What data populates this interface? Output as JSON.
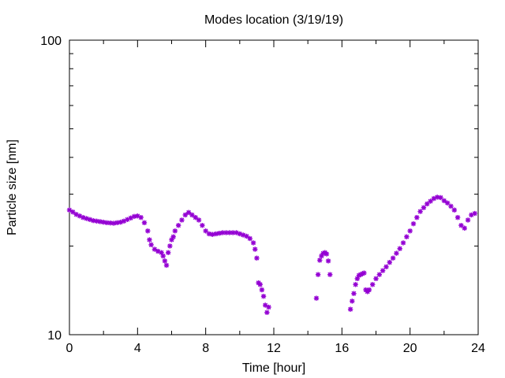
{
  "chart_data": {
    "type": "scatter",
    "title": "Modes location (3/19/19)",
    "xlabel": "Time [hour]",
    "ylabel": "Particle size [nm]",
    "xlim": [
      0,
      24
    ],
    "ylim": [
      10,
      100
    ],
    "yscale": "log",
    "x_ticks": [
      0,
      4,
      8,
      12,
      16,
      20,
      24
    ],
    "x_tick_labels": [
      "0",
      "4",
      "8",
      "12",
      "16",
      "20",
      "24"
    ],
    "y_ticks": [
      10,
      100
    ],
    "y_tick_labels": [
      "10",
      "100"
    ],
    "grid": false,
    "legend": "none",
    "marker": "asterisk",
    "color": "#9400d3",
    "series": [
      {
        "x": [
          0.0,
          0.2,
          0.4,
          0.6,
          0.8,
          1.0,
          1.2,
          1.4,
          1.6,
          1.8,
          2.0,
          2.2,
          2.4,
          2.6,
          2.8,
          3.0,
          3.2,
          3.4,
          3.6,
          3.8,
          4.0,
          4.2,
          4.4,
          4.6,
          4.7,
          4.8,
          5.0,
          5.2,
          5.4,
          5.5,
          5.6,
          5.7,
          5.8,
          5.9,
          6.0,
          6.1,
          6.2,
          6.4,
          6.6,
          6.8,
          7.0,
          7.2,
          7.4,
          7.6,
          7.8,
          8.0,
          8.2,
          8.4,
          8.6,
          8.8,
          9.0,
          9.2,
          9.4,
          9.6,
          9.8,
          10.0,
          10.2,
          10.4,
          10.6,
          10.8,
          10.9,
          11.0,
          11.1,
          11.2,
          11.3,
          11.4,
          11.5,
          11.6,
          11.7,
          14.5,
          14.6,
          14.7,
          14.8,
          14.9,
          15.0,
          15.1,
          15.2,
          15.3,
          16.5,
          16.6,
          16.7,
          16.8,
          16.9,
          17.0,
          17.1,
          17.2,
          17.3,
          17.4,
          17.5,
          17.6,
          17.8,
          18.0,
          18.2,
          18.4,
          18.6,
          18.8,
          19.0,
          19.2,
          19.4,
          19.6,
          19.8,
          20.0,
          20.2,
          20.4,
          20.6,
          20.8,
          21.0,
          21.2,
          21.4,
          21.6,
          21.8,
          22.0,
          22.2,
          22.4,
          22.6,
          22.8,
          23.0,
          23.2,
          23.4,
          23.6,
          23.8
        ],
        "y": [
          26.5,
          26.1,
          25.6,
          25.3,
          25.0,
          24.8,
          24.6,
          24.4,
          24.3,
          24.2,
          24.1,
          24.0,
          23.95,
          23.9,
          24.0,
          24.1,
          24.3,
          24.6,
          24.9,
          25.2,
          25.3,
          25.0,
          24.0,
          22.5,
          21.0,
          20.2,
          19.5,
          19.2,
          19.0,
          18.5,
          17.8,
          17.2,
          19.0,
          20.0,
          21.0,
          21.5,
          22.5,
          23.5,
          24.5,
          25.5,
          26.0,
          25.5,
          25.0,
          24.5,
          23.5,
          22.5,
          22.0,
          21.9,
          22.0,
          22.1,
          22.2,
          22.2,
          22.2,
          22.2,
          22.2,
          22.0,
          21.8,
          21.6,
          21.2,
          20.5,
          19.5,
          18.2,
          15.0,
          14.8,
          14.2,
          13.5,
          12.6,
          11.9,
          12.4,
          13.3,
          16.0,
          17.9,
          18.5,
          18.9,
          19.0,
          18.8,
          17.8,
          16.0,
          12.2,
          13.0,
          13.8,
          14.8,
          15.5,
          15.9,
          16.0,
          16.1,
          16.2,
          14.2,
          14.0,
          14.2,
          14.8,
          15.5,
          16.0,
          16.5,
          17.0,
          17.6,
          18.2,
          18.9,
          19.6,
          20.5,
          21.5,
          22.5,
          23.8,
          25.0,
          26.2,
          27.0,
          27.8,
          28.4,
          29.0,
          29.3,
          29.2,
          28.5,
          28.0,
          27.3,
          26.5,
          25.0,
          23.5,
          23.0,
          24.5,
          25.5,
          25.8
        ]
      }
    ]
  }
}
